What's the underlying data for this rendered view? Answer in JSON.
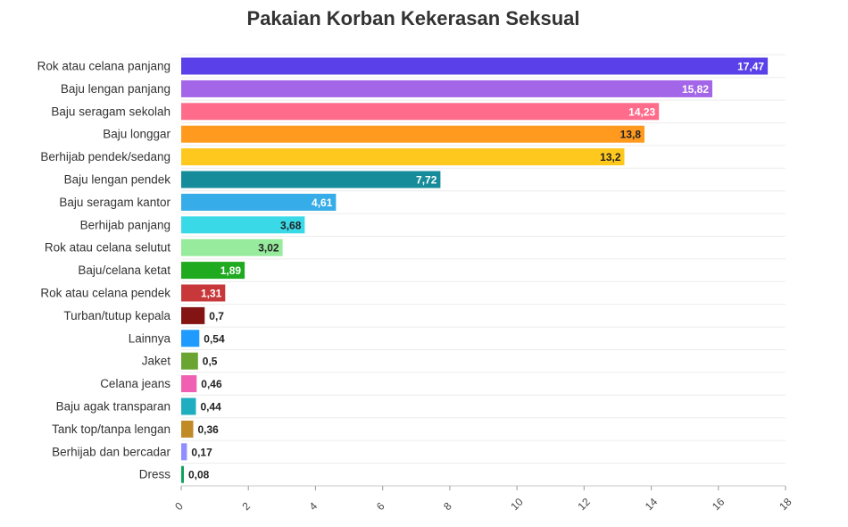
{
  "chart_data": {
    "type": "bar",
    "orientation": "horizontal",
    "title": "Pakaian Korban Kekerasan Seksual",
    "xlabel": "",
    "ylabel": "",
    "xlim": [
      0,
      18
    ],
    "ticks": [
      0,
      2,
      4,
      6,
      8,
      10,
      12,
      14,
      16,
      18
    ],
    "grid": true,
    "categories": [
      "Rok atau celana panjang",
      "Baju lengan panjang",
      "Baju seragam sekolah",
      "Baju longgar",
      "Berhijab pendek/sedang",
      "Baju lengan pendek",
      "Baju seragam kantor",
      "Berhijab panjang",
      "Rok atau celana selutut",
      "Baju/celana ketat",
      "Rok atau celana pendek",
      "Turban/tutup kepala",
      "Lainnya",
      "Jaket",
      "Celana jeans",
      "Baju agak transparan",
      "Tank top/tanpa lengan",
      "Berhijab dan bercadar",
      "Dress"
    ],
    "values": [
      17.47,
      15.82,
      14.23,
      13.8,
      13.2,
      7.72,
      4.61,
      3.68,
      3.02,
      1.89,
      1.31,
      0.7,
      0.54,
      0.5,
      0.46,
      0.44,
      0.36,
      0.17,
      0.08
    ],
    "value_labels": [
      "17,47",
      "15,82",
      "14,23",
      "13,8",
      "13,2",
      "7,72",
      "4,61",
      "3,68",
      "3,02",
      "1,89",
      "1,31",
      "0,7",
      "0,54",
      "0,5",
      "0,46",
      "0,44",
      "0,36",
      "0,17",
      "0,08"
    ],
    "colors": [
      "#5940e8",
      "#a366e8",
      "#ff6b8b",
      "#ff9a1f",
      "#ffc81f",
      "#168b9a",
      "#36ace8",
      "#3ad9e8",
      "#97eb9c",
      "#1faa1f",
      "#c8383b",
      "#841313",
      "#1f9bff",
      "#6aa534",
      "#f05fb2",
      "#1faec0",
      "#c08a25",
      "#8f8fff",
      "#0fa35a"
    ],
    "label_colors": [
      "#ffffff",
      "#ffffff",
      "#ffffff",
      "#222222",
      "#222222",
      "#ffffff",
      "#ffffff",
      "#222222",
      "#222222",
      "#ffffff",
      "#ffffff",
      "#ffffff",
      "#222222",
      "#222222",
      "#222222",
      "#222222",
      "#222222",
      "#222222",
      "#222222"
    ],
    "tick_labels": [
      "0",
      "2",
      "4",
      "6",
      "8",
      "10",
      "12",
      "14",
      "16",
      "18"
    ]
  }
}
